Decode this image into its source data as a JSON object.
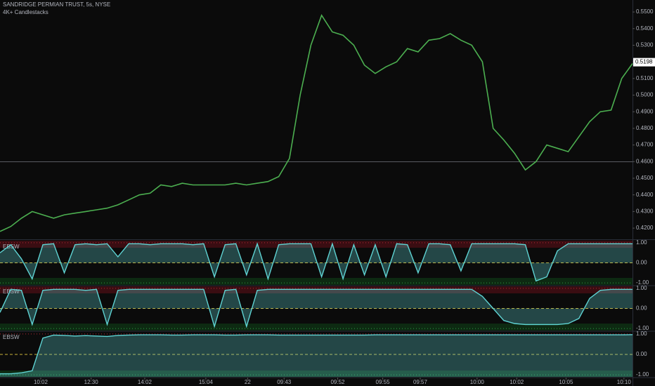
{
  "chart_data": [
    {
      "type": "line",
      "title": "SANDRIDGE PERMIAN TRUST, 5s, NYSE",
      "subtitle": "4K+ Candlestacks",
      "color": "#4caf50",
      "values": [
        0.418,
        0.421,
        0.426,
        0.43,
        0.428,
        0.426,
        0.428,
        0.429,
        0.43,
        0.431,
        0.432,
        0.434,
        0.437,
        0.44,
        0.441,
        0.446,
        0.445,
        0.447,
        0.446,
        0.446,
        0.446,
        0.446,
        0.447,
        0.446,
        0.447,
        0.448,
        0.451,
        0.462,
        0.5,
        0.53,
        0.548,
        0.538,
        0.536,
        0.53,
        0.518,
        0.513,
        0.517,
        0.52,
        0.528,
        0.526,
        0.533,
        0.534,
        0.537,
        0.533,
        0.53,
        0.52,
        0.48,
        0.473,
        0.465,
        0.455,
        0.46,
        0.47,
        0.468,
        0.466,
        0.475,
        0.484,
        0.49,
        0.491,
        0.51,
        0.519
      ],
      "xlim": [
        0,
        59
      ],
      "ylim": [
        0.4137,
        0.5572
      ],
      "yticks": [
        {
          "value": 0.42,
          "label": "0.4200"
        },
        {
          "value": 0.43,
          "label": "0.4300"
        },
        {
          "value": 0.44,
          "label": "0.4400"
        },
        {
          "value": 0.45,
          "label": "0.4500"
        },
        {
          "value": 0.46,
          "label": "0.4600"
        },
        {
          "value": 0.47,
          "label": "0.4700"
        },
        {
          "value": 0.48,
          "label": "0.4800"
        },
        {
          "value": 0.49,
          "label": "0.4900"
        },
        {
          "value": 0.5,
          "label": "0.5000"
        },
        {
          "value": 0.51,
          "label": "0.5100"
        },
        {
          "value": 0.52,
          "label": "0.5200"
        },
        {
          "value": 0.53,
          "label": "0.5300"
        },
        {
          "value": 0.54,
          "label": "0.5400"
        },
        {
          "value": 0.55,
          "label": "0.5500"
        }
      ],
      "hline": 0.46,
      "last_price": 0.5198
    },
    {
      "type": "area",
      "title": "EBSW",
      "color": "#5fd3d3",
      "values": [
        0.5,
        0.9,
        0.2,
        -0.8,
        0.9,
        0.95,
        -0.5,
        0.9,
        0.95,
        0.9,
        0.95,
        0.3,
        0.95,
        0.95,
        0.9,
        0.95,
        0.95,
        0.95,
        0.9,
        0.95,
        -0.7,
        0.9,
        0.95,
        -0.6,
        0.95,
        -0.8,
        0.9,
        0.95,
        0.95,
        0.95,
        -0.7,
        0.95,
        -0.8,
        0.9,
        -0.6,
        0.9,
        -0.7,
        0.95,
        0.9,
        -0.5,
        0.95,
        0.95,
        0.9,
        -0.4,
        0.95,
        0.95,
        0.95,
        0.95,
        0.95,
        0.9,
        -0.9,
        -0.7,
        0.6,
        0.95,
        0.95,
        0.95,
        0.95,
        0.95,
        0.95,
        0.95
      ],
      "xlim": [
        0,
        59
      ],
      "ylim": [
        -1.1,
        1.1
      ],
      "yticks": [
        {
          "value": 1,
          "label": "1.00"
        },
        {
          "value": 0,
          "label": "0.00"
        },
        {
          "value": -1,
          "label": "-1.00"
        }
      ]
    },
    {
      "type": "area",
      "title": "EBSW",
      "color": "#5fd3d3",
      "values": [
        -0.2,
        0.95,
        0.9,
        -0.8,
        0.9,
        0.95,
        0.95,
        0.95,
        0.9,
        0.95,
        -0.8,
        0.9,
        0.95,
        0.95,
        0.95,
        0.95,
        0.95,
        0.95,
        0.95,
        0.95,
        -0.9,
        0.9,
        0.95,
        -0.9,
        0.9,
        0.95,
        0.95,
        0.95,
        0.95,
        0.95,
        0.95,
        0.95,
        0.95,
        0.95,
        0.95,
        0.95,
        0.95,
        0.95,
        0.95,
        0.95,
        0.95,
        0.95,
        0.95,
        0.95,
        0.95,
        0.6,
        0.0,
        -0.6,
        -0.75,
        -0.8,
        -0.8,
        -0.8,
        -0.8,
        -0.75,
        -0.5,
        0.5,
        0.9,
        0.95,
        0.95,
        0.95
      ],
      "xlim": [
        0,
        59
      ],
      "ylim": [
        -1.1,
        1.1
      ],
      "yticks": [
        {
          "value": 1,
          "label": "1.00"
        },
        {
          "value": 0,
          "label": "0.00"
        },
        {
          "value": -1,
          "label": "-1.00"
        }
      ]
    },
    {
      "type": "area",
      "title": "EBSW",
      "color": "#5fd3d3",
      "values": [
        -0.95,
        -0.95,
        -0.9,
        -0.8,
        0.8,
        0.95,
        0.93,
        0.9,
        0.92,
        0.9,
        0.88,
        0.93,
        0.95,
        0.96,
        0.96,
        0.96,
        0.95,
        0.95,
        0.96,
        0.96,
        0.96,
        0.95,
        0.95,
        0.96,
        0.96,
        0.96,
        0.95,
        0.95,
        0.95,
        0.95,
        0.95,
        0.95,
        0.95,
        0.95,
        0.95,
        0.96,
        0.96,
        0.96,
        0.96,
        0.96,
        0.96,
        0.96,
        0.96,
        0.96,
        0.96,
        0.96,
        0.96,
        0.96,
        0.96,
        0.96,
        0.96,
        0.96,
        0.96,
        0.96,
        0.96,
        0.96,
        0.96,
        0.96,
        0.96,
        0.97
      ],
      "xlim": [
        0,
        59
      ],
      "ylim": [
        -1.1,
        1.1
      ],
      "yticks": [
        {
          "value": 1,
          "label": "1.00"
        },
        {
          "value": 0,
          "label": "0.00"
        },
        {
          "value": -1,
          "label": "-1.00"
        }
      ],
      "xticks": [
        {
          "value": 3.8,
          "label": "10:02"
        },
        {
          "value": 8.5,
          "label": "12:30"
        },
        {
          "value": 13.5,
          "label": "14:02"
        },
        {
          "value": 19.2,
          "label": "15:04"
        },
        {
          "value": 23.1,
          "label": "22"
        },
        {
          "value": 26.5,
          "label": "09:43"
        },
        {
          "value": 31.5,
          "label": "09:52"
        },
        {
          "value": 35.7,
          "label": "09:55"
        },
        {
          "value": 39.2,
          "label": "09:57"
        },
        {
          "value": 44.5,
          "label": "10:00"
        },
        {
          "value": 48.2,
          "label": "10:02"
        },
        {
          "value": 52.8,
          "label": "10:05"
        },
        {
          "value": 58.2,
          "label": "10:10"
        }
      ]
    }
  ]
}
